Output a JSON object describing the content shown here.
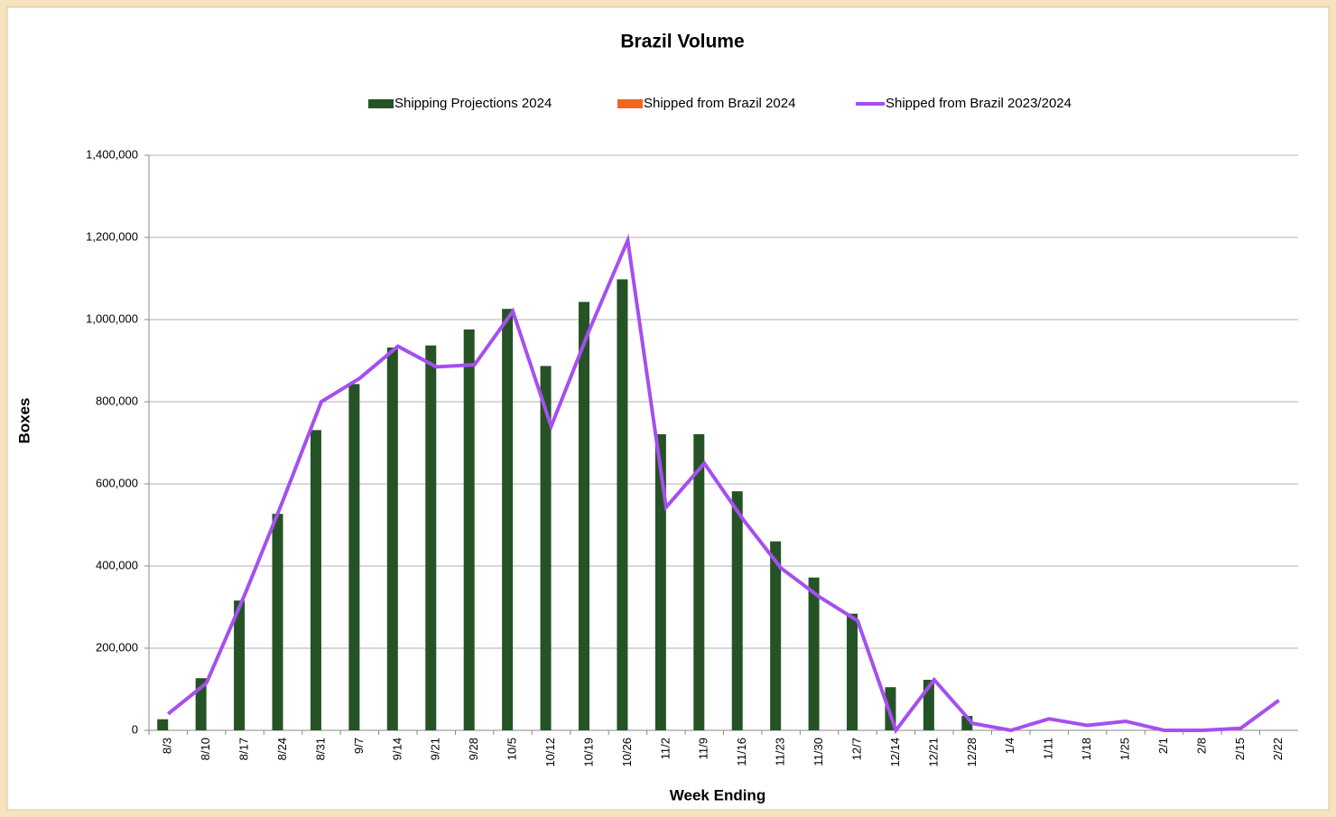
{
  "chart_data": {
    "type": "bar",
    "title": "Brazil Volume",
    "x_label": "Week Ending",
    "y_label": "Boxes",
    "categories": [
      "8/3",
      "8/10",
      "8/17",
      "8/24",
      "8/31",
      "9/7",
      "9/14",
      "9/21",
      "9/28",
      "10/5",
      "10/12",
      "10/19",
      "10/26",
      "11/2",
      "11/9",
      "11/16",
      "11/23",
      "11/30",
      "12/7",
      "12/14",
      "12/21",
      "12/28",
      "1/4",
      "1/11",
      "1/18",
      "1/25",
      "2/1",
      "2/8",
      "2/15",
      "2/22"
    ],
    "series": [
      {
        "name": "Shipping Projections 2024",
        "type": "bar",
        "color": "#255325",
        "values": [
          27000,
          127000,
          316000,
          527000,
          731000,
          843000,
          932000,
          937000,
          976000,
          1026000,
          887000,
          1043000,
          1098000,
          721000,
          721000,
          582000,
          460000,
          372000,
          284000,
          105000,
          123000,
          35000,
          null,
          null,
          null,
          null,
          null,
          null,
          null,
          null
        ]
      },
      {
        "name": "Shipped from Brazil 2024",
        "type": "bar",
        "color": "#f26522",
        "values": [
          null,
          null,
          null,
          null,
          null,
          null,
          null,
          null,
          null,
          null,
          null,
          null,
          null,
          null,
          null,
          null,
          null,
          null,
          null,
          null,
          null,
          null,
          null,
          null,
          null,
          null,
          null,
          null,
          null,
          null
        ]
      },
      {
        "name": "Shipped from Brazil 2023/2024",
        "type": "line",
        "color": "#a64ff0",
        "values": [
          40000,
          115000,
          330000,
          560000,
          800000,
          857000,
          935000,
          885000,
          890000,
          1020000,
          740000,
          975000,
          1193000,
          543000,
          650000,
          515000,
          395000,
          325000,
          267000,
          0,
          123000,
          17000,
          0,
          28000,
          12000,
          22000,
          0,
          0,
          5000,
          73000
        ]
      }
    ],
    "ylim": [
      0,
      1400000
    ],
    "yticks": [
      0,
      {
        "value": 200000,
        "label": "200,000"
      },
      {
        "value": 400000,
        "label": "400,000"
      },
      {
        "value": 600000,
        "label": "600,000"
      },
      {
        "value": 800000,
        "label": "800,000"
      },
      {
        "value": 1000000,
        "label": "1,000,000"
      },
      {
        "value": 1200000,
        "label": "1,200,000"
      },
      {
        "value": 1400000,
        "label": "1,400,000"
      }
    ],
    "grid": true,
    "legend": "top"
  }
}
